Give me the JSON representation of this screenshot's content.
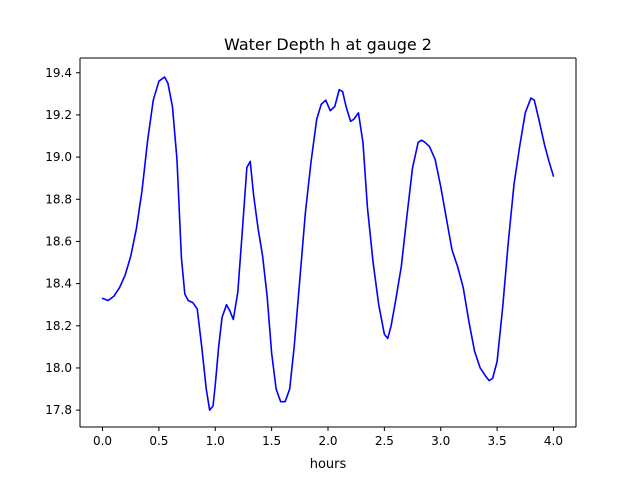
{
  "chart_data": {
    "type": "line",
    "title": "Water Depth h at gauge 2",
    "xlabel": "hours",
    "ylabel": "",
    "xlim": [
      -0.2,
      4.2
    ],
    "ylim": [
      17.72,
      19.47
    ],
    "grid": false,
    "xticks": [
      0.0,
      0.5,
      1.0,
      1.5,
      2.0,
      2.5,
      3.0,
      3.5,
      4.0
    ],
    "xtick_labels": [
      "0.0",
      "0.5",
      "1.0",
      "1.5",
      "2.0",
      "2.5",
      "3.0",
      "3.5",
      "4.0"
    ],
    "yticks": [
      17.8,
      18.0,
      18.2,
      18.4,
      18.6,
      18.8,
      19.0,
      19.2,
      19.4
    ],
    "ytick_labels": [
      "17.8",
      "18.0",
      "18.2",
      "18.4",
      "18.6",
      "18.8",
      "19.0",
      "19.2",
      "19.4"
    ],
    "series": [
      {
        "color": "#0000ff",
        "x": [
          0.0,
          0.05,
          0.1,
          0.15,
          0.2,
          0.25,
          0.3,
          0.35,
          0.4,
          0.45,
          0.5,
          0.55,
          0.58,
          0.62,
          0.66,
          0.7,
          0.73,
          0.76,
          0.8,
          0.84,
          0.88,
          0.92,
          0.95,
          0.98,
          1.0,
          1.03,
          1.06,
          1.1,
          1.13,
          1.16,
          1.2,
          1.24,
          1.28,
          1.31,
          1.34,
          1.38,
          1.42,
          1.46,
          1.5,
          1.54,
          1.58,
          1.62,
          1.66,
          1.7,
          1.75,
          1.8,
          1.85,
          1.9,
          1.94,
          1.98,
          2.02,
          2.06,
          2.1,
          2.13,
          2.16,
          2.2,
          2.23,
          2.27,
          2.31,
          2.35,
          2.4,
          2.45,
          2.5,
          2.53,
          2.56,
          2.6,
          2.65,
          2.7,
          2.75,
          2.8,
          2.83,
          2.86,
          2.9,
          2.95,
          3.0,
          3.05,
          3.1,
          3.15,
          3.2,
          3.25,
          3.3,
          3.35,
          3.4,
          3.43,
          3.46,
          3.5,
          3.55,
          3.6,
          3.65,
          3.7,
          3.75,
          3.8,
          3.83,
          3.87,
          3.92,
          3.96,
          4.0
        ],
        "y": [
          18.33,
          18.32,
          18.34,
          18.38,
          18.44,
          18.53,
          18.66,
          18.84,
          19.08,
          19.27,
          19.36,
          19.38,
          19.35,
          19.24,
          18.99,
          18.52,
          18.35,
          18.32,
          18.31,
          18.28,
          18.1,
          17.9,
          17.8,
          17.82,
          17.92,
          18.1,
          18.24,
          18.3,
          18.27,
          18.23,
          18.36,
          18.65,
          18.95,
          18.98,
          18.82,
          18.66,
          18.53,
          18.34,
          18.07,
          17.9,
          17.84,
          17.84,
          17.9,
          18.1,
          18.42,
          18.74,
          18.98,
          19.18,
          19.25,
          19.27,
          19.22,
          19.24,
          19.32,
          19.31,
          19.24,
          19.17,
          19.18,
          19.21,
          19.07,
          18.76,
          18.5,
          18.3,
          18.16,
          18.14,
          18.2,
          18.32,
          18.48,
          18.72,
          18.95,
          19.07,
          19.08,
          19.07,
          19.05,
          18.99,
          18.86,
          18.71,
          18.56,
          18.48,
          18.38,
          18.22,
          18.08,
          18.0,
          17.96,
          17.94,
          17.95,
          18.03,
          18.29,
          18.6,
          18.87,
          19.05,
          19.21,
          19.28,
          19.27,
          19.18,
          19.06,
          18.98,
          18.91
        ]
      }
    ]
  }
}
